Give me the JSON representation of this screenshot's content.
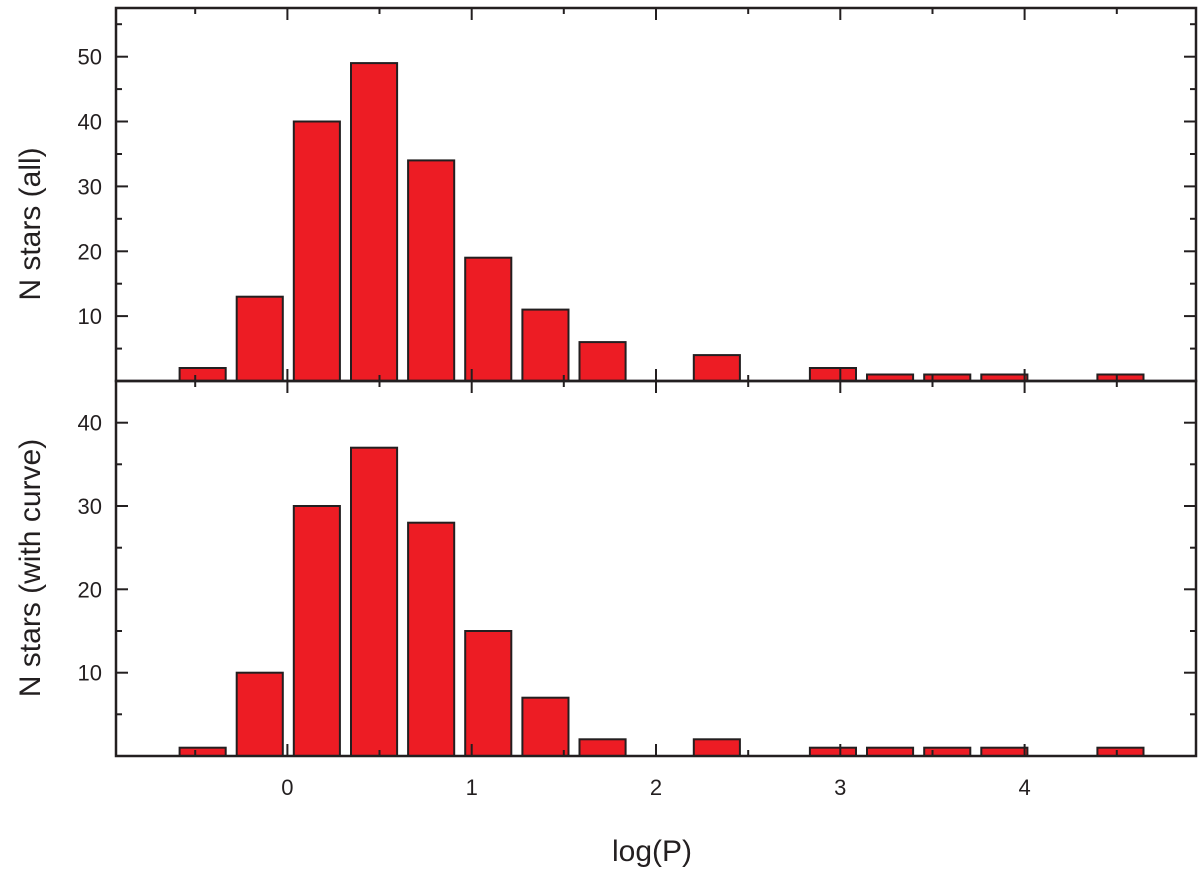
{
  "chart_data": {
    "type": "bar",
    "xlabel": "log(P)",
    "xlim": [
      -0.93,
      4.93
    ],
    "xticks": [
      0,
      1,
      2,
      3,
      4
    ],
    "bin_centers": [
      -0.46,
      -0.15,
      0.16,
      0.47,
      0.78,
      1.09,
      1.4,
      1.71,
      2.33,
      2.96,
      3.27,
      3.58,
      3.89,
      4.52
    ],
    "bar_width": 0.25,
    "bar_color": "#ed1c24",
    "panels": [
      {
        "ylabel": "N stars (all)",
        "ylim": [
          0,
          57.5
        ],
        "yticks": [
          10,
          20,
          30,
          40,
          50
        ],
        "values": [
          2,
          13,
          40,
          49,
          34,
          19,
          11,
          6,
          4,
          2,
          1,
          1,
          1,
          1
        ]
      },
      {
        "ylabel": "N stars (with curve)",
        "ylim": [
          0,
          45
        ],
        "yticks": [
          10,
          20,
          30,
          40
        ],
        "values": [
          1,
          10,
          30,
          37,
          28,
          15,
          7,
          2,
          2,
          1,
          1,
          1,
          1,
          1
        ]
      }
    ]
  }
}
